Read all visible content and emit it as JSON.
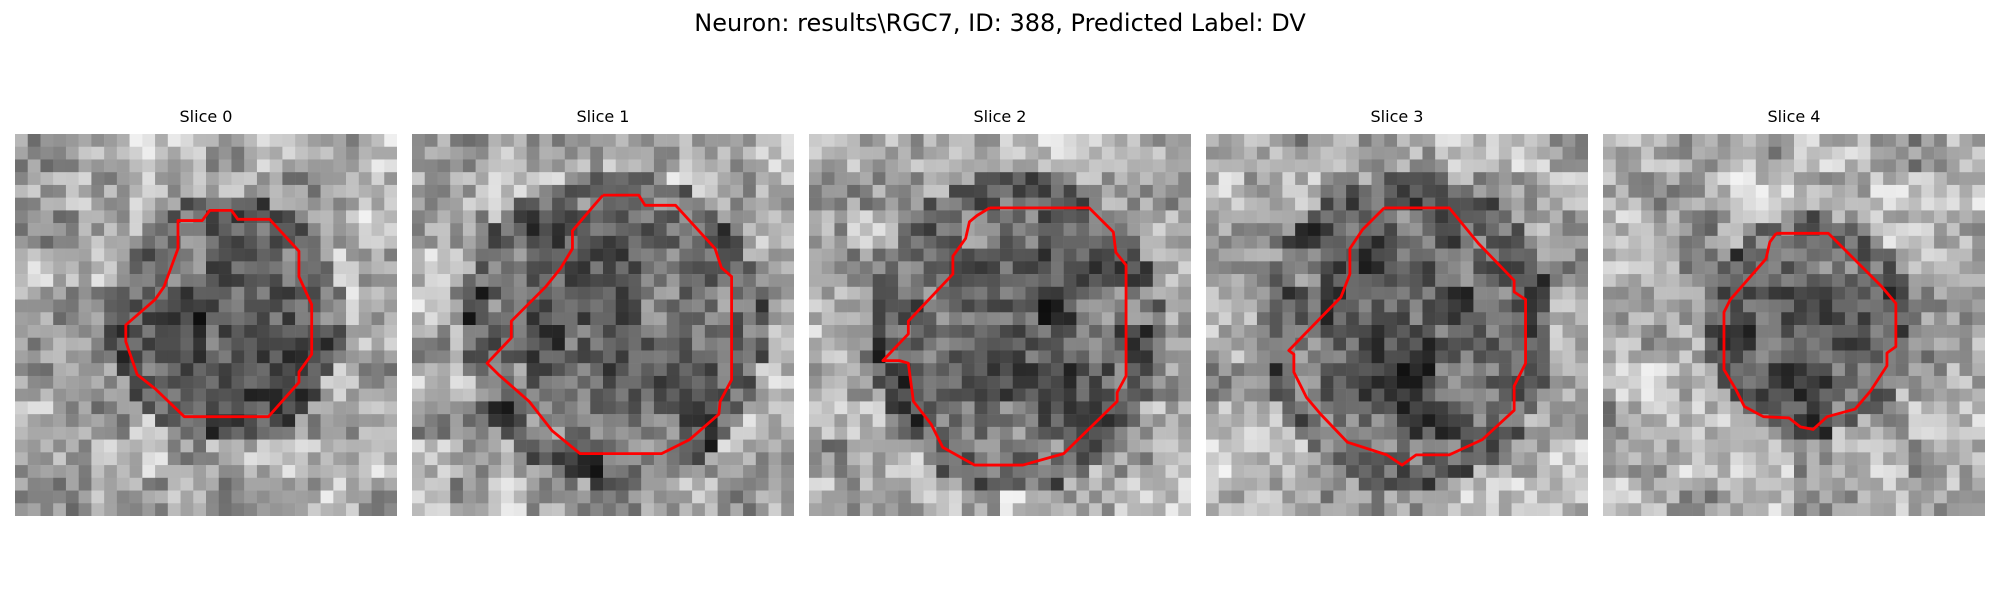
{
  "figure": {
    "title": "Neuron: results\\RGC7, ID: 388, Predicted Label: DV"
  },
  "panels": [
    {
      "title": "Slice 0"
    },
    {
      "title": "Slice 1"
    },
    {
      "title": "Slice 2"
    },
    {
      "title": "Slice 3"
    },
    {
      "title": "Slice 4"
    }
  ],
  "colors": {
    "contour": "#ff0000",
    "background": "#ffffff"
  }
}
